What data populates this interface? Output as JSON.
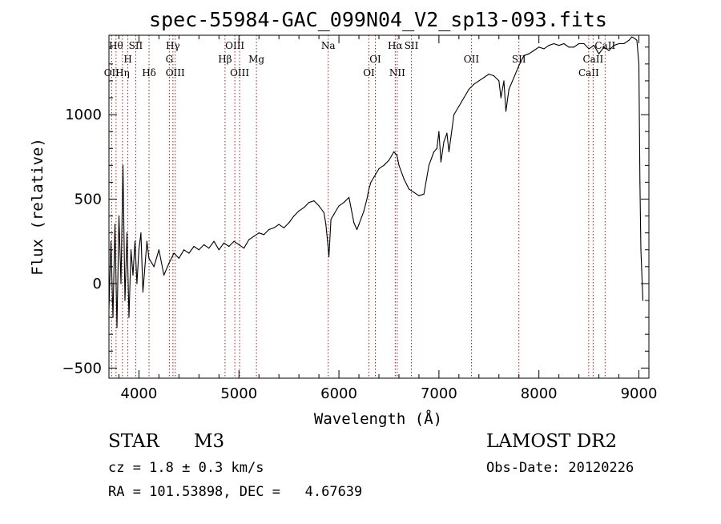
{
  "chart_data": {
    "type": "line",
    "title": "spec-55984-GAC_099N04_V2_sp13-093.fits",
    "xlabel": "Wavelength (Å)",
    "ylabel": "Flux (relative)",
    "xlim": [
      3700,
      9100
    ],
    "ylim": [
      -560,
      1470
    ],
    "x_ticks": [
      4000,
      5000,
      6000,
      7000,
      8000,
      9000
    ],
    "y_ticks": [
      -500,
      0,
      500,
      1000
    ],
    "grid": false,
    "series": [
      {
        "x": [
          3700,
          3720,
          3740,
          3760,
          3780,
          3800,
          3820,
          3840,
          3860,
          3880,
          3900,
          3920,
          3940,
          3960,
          3980,
          4000,
          4020,
          4040,
          4060,
          4080,
          4100,
          4150,
          4200,
          4250,
          4300,
          4350,
          4400,
          4450,
          4500,
          4550,
          4600,
          4650,
          4700,
          4750,
          4800,
          4850,
          4900,
          4950,
          5000,
          5050,
          5100,
          5150,
          5200,
          5250,
          5300,
          5350,
          5400,
          5450,
          5500,
          5550,
          5600,
          5650,
          5700,
          5750,
          5800,
          5850,
          5870,
          5890,
          5900,
          5920,
          5950,
          6000,
          6050,
          6100,
          6120,
          6150,
          6180,
          6200,
          6250,
          6280,
          6300,
          6320,
          6350,
          6400,
          6450,
          6500,
          6550,
          6580,
          6600,
          6650,
          6700,
          6750,
          6800,
          6850,
          6900,
          6950,
          6980,
          7000,
          7020,
          7050,
          7080,
          7100,
          7150,
          7200,
          7250,
          7300,
          7350,
          7400,
          7450,
          7500,
          7550,
          7600,
          7620,
          7650,
          7670,
          7700,
          7750,
          7800,
          7850,
          7900,
          7950,
          8000,
          8050,
          8100,
          8150,
          8200,
          8250,
          8300,
          8350,
          8400,
          8450,
          8500,
          8550,
          8600,
          8650,
          8700,
          8750,
          8800,
          8850,
          8900,
          8930,
          8960,
          8980,
          9000,
          9010,
          9020,
          9040
        ],
        "values": [
          -150,
          250,
          -200,
          350,
          -260,
          400,
          0,
          700,
          -100,
          300,
          -200,
          200,
          50,
          250,
          0,
          200,
          300,
          -50,
          100,
          250,
          150,
          100,
          200,
          50,
          120,
          180,
          150,
          200,
          180,
          220,
          200,
          230,
          210,
          250,
          200,
          240,
          220,
          250,
          230,
          210,
          260,
          280,
          300,
          290,
          320,
          330,
          350,
          330,
          360,
          400,
          430,
          450,
          480,
          490,
          460,
          420,
          350,
          230,
          160,
          380,
          410,
          460,
          480,
          510,
          450,
          360,
          320,
          350,
          430,
          500,
          560,
          600,
          630,
          680,
          700,
          730,
          780,
          760,
          700,
          620,
          560,
          540,
          520,
          530,
          700,
          780,
          800,
          900,
          720,
          840,
          890,
          780,
          1000,
          1050,
          1100,
          1150,
          1180,
          1200,
          1220,
          1240,
          1230,
          1200,
          1100,
          1200,
          1020,
          1150,
          1220,
          1290,
          1350,
          1360,
          1380,
          1400,
          1390,
          1410,
          1420,
          1410,
          1420,
          1400,
          1400,
          1420,
          1420,
          1390,
          1410,
          1360,
          1400,
          1380,
          1410,
          1420,
          1420,
          1440,
          1460,
          1450,
          1440,
          1300,
          600,
          200,
          -100
        ]
      }
    ],
    "line_markers": [
      {
        "wl": 3771,
        "label": "Hθ",
        "row": 0
      },
      {
        "wl": 3835,
        "label": "Hη",
        "row": 2
      },
      {
        "wl": 3727,
        "label": "OII",
        "row": 2
      },
      {
        "wl": 3889,
        "label": "H",
        "row": 1
      },
      {
        "wl": 3968,
        "label": "SII",
        "row": 0
      },
      {
        "wl": 4101,
        "label": "Hδ",
        "row": 2
      },
      {
        "wl": 4304,
        "label": "G",
        "row": 1
      },
      {
        "wl": 4340,
        "label": "Hγ",
        "row": 0
      },
      {
        "wl": 4363,
        "label": "OIII",
        "row": 2
      },
      {
        "wl": 4861,
        "label": "Hβ",
        "row": 1
      },
      {
        "wl": 4959,
        "label": "OIII",
        "row": 0
      },
      {
        "wl": 5007,
        "label": "OIII",
        "row": 2
      },
      {
        "wl": 5175,
        "label": "Mg",
        "row": 1
      },
      {
        "wl": 5893,
        "label": "Na",
        "row": 0
      },
      {
        "wl": 6300,
        "label": "OI",
        "row": 2
      },
      {
        "wl": 6364,
        "label": "OI",
        "row": 1
      },
      {
        "wl": 6563,
        "label": "Hα",
        "row": 0
      },
      {
        "wl": 6583,
        "label": "NII",
        "row": 2
      },
      {
        "wl": 6725,
        "label": "SII",
        "row": 0
      },
      {
        "wl": 7325,
        "label": "OII",
        "row": 1
      },
      {
        "wl": 7800,
        "label": "SII",
        "row": 1
      },
      {
        "wl": 8498,
        "label": "CaII",
        "row": 2
      },
      {
        "wl": 8542,
        "label": "CaII",
        "row": 1
      },
      {
        "wl": 8662,
        "label": "CaII",
        "row": 0
      }
    ]
  },
  "info": {
    "object_type": "STAR",
    "subclass": "M3",
    "survey": "LAMOST DR2",
    "cz": "cz = 1.8 ± 0.3 km/s",
    "obs_date": "Obs-Date: 20120226",
    "radec": "RA = 101.53898, DEC =   4.67639"
  }
}
